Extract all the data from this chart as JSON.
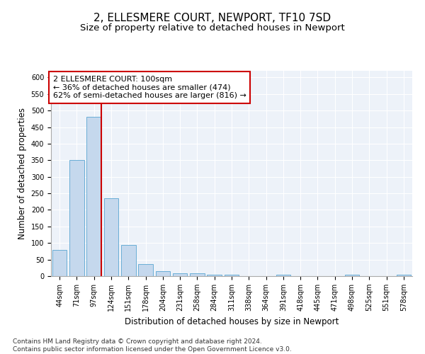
{
  "title": "2, ELLESMERE COURT, NEWPORT, TF10 7SD",
  "subtitle": "Size of property relative to detached houses in Newport",
  "xlabel": "Distribution of detached houses by size in Newport",
  "ylabel": "Number of detached properties",
  "categories": [
    "44sqm",
    "71sqm",
    "97sqm",
    "124sqm",
    "151sqm",
    "178sqm",
    "204sqm",
    "231sqm",
    "258sqm",
    "284sqm",
    "311sqm",
    "338sqm",
    "364sqm",
    "391sqm",
    "418sqm",
    "445sqm",
    "471sqm",
    "498sqm",
    "525sqm",
    "551sqm",
    "578sqm"
  ],
  "values": [
    80,
    350,
    480,
    235,
    95,
    37,
    16,
    8,
    8,
    5,
    4,
    1,
    0,
    5,
    0,
    0,
    0,
    5,
    0,
    0,
    5
  ],
  "bar_color": "#c5d8ed",
  "bar_edge_color": "#6aaed6",
  "vline_x_index": 2,
  "vline_color": "#cc0000",
  "annotation_line1": "2 ELLESMERE COURT: 100sqm",
  "annotation_line2": "← 36% of detached houses are smaller (474)",
  "annotation_line3": "62% of semi-detached houses are larger (816) →",
  "annotation_box_color": "#ffffff",
  "annotation_box_edge": "#cc0000",
  "ylim": [
    0,
    620
  ],
  "yticks": [
    0,
    50,
    100,
    150,
    200,
    250,
    300,
    350,
    400,
    450,
    500,
    550,
    600
  ],
  "background_color": "#edf2f9",
  "grid_color": "#ffffff",
  "footnote": "Contains HM Land Registry data © Crown copyright and database right 2024.\nContains public sector information licensed under the Open Government Licence v3.0.",
  "title_fontsize": 11,
  "subtitle_fontsize": 9.5,
  "xlabel_fontsize": 8.5,
  "ylabel_fontsize": 8.5,
  "tick_fontsize": 7,
  "annotation_fontsize": 8,
  "footnote_fontsize": 6.5
}
